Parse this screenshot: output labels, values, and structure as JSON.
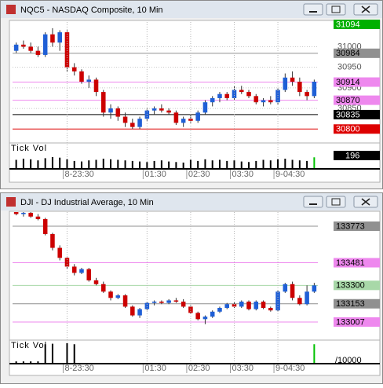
{
  "chart_data": [
    {
      "type": "candlestick",
      "title": "NQC5 - NASDAQ Composite, 10 Min",
      "up_color": "#1f5fd6",
      "down_color": "#cc0000",
      "ylim": [
        30770,
        31060
      ],
      "yticks": [
        31000,
        30950,
        30900,
        30850
      ],
      "grid": true,
      "levels": [
        {
          "value": 31094,
          "color": "#00b000"
        },
        {
          "value": 30984,
          "color": "#909090"
        },
        {
          "value": 30914,
          "color": "#ee88ee"
        },
        {
          "value": 30870,
          "color": "#ee88ee"
        },
        {
          "value": 30835,
          "color": "#000000"
        },
        {
          "value": 30800,
          "color": "#dd0000"
        }
      ],
      "categories": [
        null,
        null,
        null,
        null,
        null,
        null,
        null,
        "8-23:30",
        null,
        null,
        null,
        null,
        null,
        null,
        null,
        null,
        null,
        null,
        "01:30",
        null,
        null,
        null,
        null,
        null,
        "02:30",
        null,
        null,
        null,
        null,
        null,
        "03:30",
        null,
        null,
        null,
        null,
        null,
        "9-04:30",
        null,
        null,
        null,
        null,
        null
      ],
      "open": [
        30990,
        31005,
        31000,
        30990,
        30980,
        31030,
        31010,
        31035,
        30950,
        30940,
        30915,
        30920,
        30890,
        30840,
        30850,
        30830,
        30815,
        30805,
        30825,
        30845,
        30850,
        30845,
        30840,
        30815,
        30825,
        30820,
        30840,
        30865,
        30875,
        30885,
        30875,
        30895,
        30890,
        30880,
        30865,
        30870,
        30865,
        30895,
        30925,
        30915,
        30890,
        30880
      ],
      "high": [
        31010,
        31015,
        31010,
        31000,
        31035,
        31045,
        31040,
        31040,
        30960,
        30945,
        30930,
        30925,
        30895,
        30860,
        30855,
        30840,
        30825,
        30830,
        30850,
        30855,
        30860,
        30850,
        30845,
        30830,
        30835,
        30845,
        30870,
        30880,
        30890,
        30890,
        30905,
        30905,
        30895,
        30885,
        30875,
        30880,
        30900,
        30935,
        30940,
        30925,
        30895,
        30920
      ],
      "low": [
        30985,
        30995,
        30985,
        30975,
        30975,
        31000,
        30990,
        30940,
        30930,
        30910,
        30900,
        30880,
        30830,
        30825,
        30820,
        30805,
        30800,
        30800,
        30820,
        30835,
        30840,
        30835,
        30810,
        30805,
        30815,
        30815,
        30835,
        30855,
        30865,
        30870,
        30870,
        30885,
        30875,
        30860,
        30855,
        30860,
        30860,
        30890,
        30905,
        30880,
        30870,
        30875
      ],
      "close": [
        31005,
        31000,
        30990,
        30980,
        31030,
        31010,
        31035,
        30950,
        30940,
        30915,
        30920,
        30890,
        30840,
        30850,
        30830,
        30815,
        30805,
        30825,
        30845,
        30850,
        30845,
        30840,
        30815,
        30825,
        30820,
        30840,
        30865,
        30875,
        30885,
        30875,
        30895,
        30890,
        30880,
        30865,
        30870,
        30865,
        30895,
        30925,
        30915,
        30890,
        30880,
        30915
      ],
      "volume_label": "Tick Vol",
      "volume_color": "#000000",
      "current_bar_color": "#00c000",
      "vlim": [
        0,
        400
      ],
      "volume": [
        150,
        170,
        160,
        140,
        180,
        200,
        190,
        160,
        130,
        120,
        140,
        150,
        170,
        160,
        150,
        140,
        130,
        120,
        110,
        130,
        140,
        120,
        110,
        100,
        150,
        130,
        160,
        140,
        150,
        130,
        140,
        120,
        110,
        130,
        150,
        140,
        160,
        170,
        150,
        140,
        130,
        196
      ]
    },
    {
      "type": "candlestick",
      "title": "DJI - DJ Industrial Average, 10 Min",
      "up_color": "#1f5fd6",
      "down_color": "#cc0000",
      "ylim": [
        132938,
        133886
      ],
      "yticks": [],
      "grid": true,
      "levels": [
        {
          "value": 133773,
          "color": "#909090"
        },
        {
          "value": 133481,
          "color": "#ee88ee"
        },
        {
          "value": 133300,
          "color": "#a8d8a8"
        },
        {
          "value": 133153,
          "color": "#909090"
        },
        {
          "value": 133007,
          "color": "#ee88ee"
        }
      ],
      "categories": [
        null,
        null,
        null,
        null,
        null,
        null,
        null,
        "8-23:30",
        null,
        null,
        null,
        null,
        null,
        null,
        null,
        null,
        null,
        null,
        "01:30",
        null,
        null,
        null,
        null,
        null,
        "02:30",
        null,
        null,
        null,
        null,
        null,
        "03:30",
        null,
        null,
        null,
        null,
        null,
        "9-04:30",
        null,
        null,
        null,
        null,
        null
      ],
      "open": [
        133900,
        133870,
        133880,
        133850,
        133830,
        133710,
        133600,
        133520,
        133450,
        133400,
        133430,
        133340,
        133310,
        133250,
        133200,
        133220,
        133130,
        133060,
        133110,
        133160,
        133170,
        133160,
        133180,
        133170,
        133130,
        133080,
        133030,
        133050,
        133090,
        133120,
        133150,
        133130,
        133170,
        133110,
        133170,
        133120,
        133100,
        133250,
        133310,
        133200,
        133150,
        133250
      ],
      "high": [
        133920,
        133900,
        133890,
        133870,
        133840,
        133720,
        133620,
        133530,
        133470,
        133440,
        133440,
        133360,
        133330,
        133260,
        133230,
        133230,
        133140,
        133120,
        133170,
        133180,
        133180,
        133190,
        133200,
        133190,
        133140,
        133090,
        133060,
        133100,
        133130,
        133160,
        133170,
        133180,
        133180,
        133180,
        133180,
        133130,
        133260,
        133320,
        133330,
        133220,
        133300,
        133320
      ],
      "low": [
        133860,
        133850,
        133840,
        133820,
        133700,
        133580,
        133500,
        133430,
        133380,
        133390,
        133330,
        133300,
        133240,
        133180,
        133190,
        133120,
        133050,
        133040,
        133100,
        133140,
        133150,
        133150,
        133160,
        133120,
        133070,
        133020,
        132990,
        133040,
        133080,
        133110,
        133120,
        133120,
        133100,
        133100,
        133110,
        133090,
        133090,
        133240,
        133180,
        133140,
        133140,
        133240
      ],
      "close": [
        133870,
        133880,
        133850,
        133830,
        133710,
        133600,
        133520,
        133450,
        133400,
        133430,
        133340,
        133310,
        133250,
        133200,
        133220,
        133130,
        133060,
        133110,
        133160,
        133170,
        133160,
        133180,
        133170,
        133130,
        133080,
        133030,
        133050,
        133090,
        133120,
        133150,
        133130,
        133170,
        133110,
        133170,
        133120,
        133100,
        133250,
        133310,
        133200,
        133150,
        133250,
        133300
      ],
      "volume_label": "Tick Vol",
      "volume_scale_label": "/10000",
      "volume_color": "#000000",
      "current_bar_color": "#00c000",
      "vlim": [
        0,
        400
      ],
      "volume": [
        30,
        30,
        30,
        30,
        380,
        390,
        0,
        400,
        380,
        0,
        0,
        0,
        0,
        0,
        0,
        0,
        0,
        0,
        0,
        0,
        0,
        0,
        0,
        0,
        0,
        0,
        0,
        0,
        0,
        0,
        0,
        0,
        0,
        0,
        0,
        0,
        0,
        0,
        0,
        0,
        0,
        380
      ]
    }
  ]
}
